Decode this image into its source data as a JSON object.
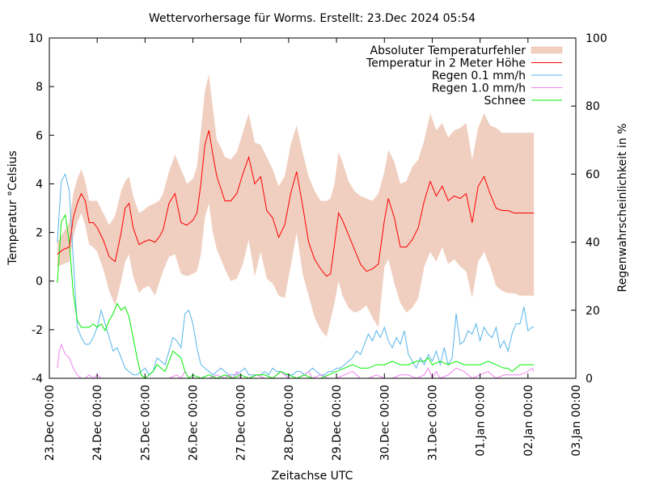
{
  "chart_data": {
    "type": "line",
    "title": "Wettervorhersage für Worms. Erstellt: 23.Dec 2024 05:54",
    "xlabel": "Zeitachse UTC",
    "ylabel": "Temperatur °Celsius",
    "y2label": "Regenwahrscheinlichkeit in %",
    "ylim": [
      -4,
      10
    ],
    "y2lim": [
      0,
      100
    ],
    "x_unit": "hours since 23.Dec 00:00 UTC",
    "xlim": [
      0,
      264
    ],
    "x_ticks": [
      {
        "hour": 0,
        "label": "23.Dec 00:00"
      },
      {
        "hour": 24,
        "label": "24.Dec 00:00"
      },
      {
        "hour": 48,
        "label": "25.Dec 00:00"
      },
      {
        "hour": 72,
        "label": "26.Dec 00:00"
      },
      {
        "hour": 96,
        "label": "27.Dec 00:00"
      },
      {
        "hour": 120,
        "label": "28.Dec 00:00"
      },
      {
        "hour": 144,
        "label": "29.Dec 00:00"
      },
      {
        "hour": 168,
        "label": "30.Dec 00:00"
      },
      {
        "hour": 192,
        "label": "31.Dec 00:00"
      },
      {
        "hour": 216,
        "label": "01.Jan 00:00"
      },
      {
        "hour": 240,
        "label": "02.Jan 00:00"
      },
      {
        "hour": 264,
        "label": "03.Jan 00:00"
      }
    ],
    "y_ticks": [
      {
        "value": 10,
        "label": "10"
      },
      {
        "value": 8,
        "label": "8"
      },
      {
        "value": 6,
        "label": "6"
      },
      {
        "value": 4,
        "label": "4"
      },
      {
        "value": 2,
        "label": "2"
      },
      {
        "value": 0,
        "label": "0"
      },
      {
        "value": -2,
        "label": "-2"
      },
      {
        "value": -4,
        "label": "-4"
      }
    ],
    "y2_ticks": [
      {
        "value": 100,
        "label": "100"
      },
      {
        "value": 80,
        "label": "80"
      },
      {
        "value": 60,
        "label": "60"
      },
      {
        "value": 40,
        "label": "40"
      },
      {
        "value": 20,
        "label": "20"
      },
      {
        "value": 0,
        "label": "0"
      }
    ],
    "grid": false,
    "legend_position": "top-right",
    "legend": [
      {
        "label": "Absoluter Temperaturfehler",
        "kind": "band",
        "color": "#f0cfc0"
      },
      {
        "label": "Temperatur in 2 Meter Höhe",
        "kind": "line",
        "color": "#ff0000"
      },
      {
        "label": "Regen 0.1 mm/h",
        "kind": "line",
        "color": "#56b4e9"
      },
      {
        "label": "Regen 1.0 mm/h",
        "kind": "line",
        "color": "#ee82ee"
      },
      {
        "label": "Schnee",
        "kind": "line",
        "color": "#00ee00"
      }
    ],
    "series": [
      {
        "name": "Temperatur in 2 Meter Höhe",
        "axis": "left",
        "color": "#ff0000",
        "x": [
          4,
          7,
          10,
          12,
          14,
          16,
          18,
          20,
          22,
          24,
          27,
          30,
          33,
          36,
          38,
          40,
          42,
          45,
          47,
          50,
          53,
          55,
          57,
          60,
          63,
          66,
          69,
          72,
          74,
          76,
          78,
          80,
          82,
          84,
          86,
          88,
          91,
          94,
          97,
          100,
          103,
          106,
          109,
          112,
          115,
          118,
          121,
          124,
          127,
          130,
          133,
          136,
          139,
          141,
          143,
          145,
          147,
          150,
          153,
          156,
          159,
          162,
          165,
          168,
          170,
          173,
          176,
          179,
          182,
          185,
          188,
          191,
          194,
          197,
          200,
          203,
          206,
          209,
          212,
          215,
          218,
          221,
          224,
          227,
          230,
          233,
          236,
          239,
          242,
          243
        ],
        "values": [
          1.1,
          1.3,
          1.4,
          2.6,
          3.2,
          3.6,
          3.3,
          2.4,
          2.4,
          2.2,
          1.7,
          1.0,
          0.8,
          2.0,
          3.0,
          3.2,
          2.2,
          1.5,
          1.6,
          1.7,
          1.6,
          1.8,
          2.1,
          3.2,
          3.6,
          2.4,
          2.3,
          2.5,
          2.8,
          4.0,
          5.6,
          6.2,
          5.2,
          4.3,
          3.8,
          3.3,
          3.3,
          3.6,
          4.4,
          5.1,
          4.0,
          4.3,
          2.9,
          2.6,
          1.8,
          2.3,
          3.6,
          4.5,
          3.1,
          1.6,
          0.9,
          0.5,
          0.2,
          0.3,
          1.5,
          2.8,
          2.5,
          1.9,
          1.3,
          0.7,
          0.4,
          0.5,
          0.7,
          2.5,
          3.4,
          2.6,
          1.4,
          1.4,
          1.7,
          2.2,
          3.3,
          4.1,
          3.5,
          3.9,
          3.3,
          3.5,
          3.4,
          3.6,
          2.4,
          3.9,
          4.3,
          3.6,
          3.0,
          2.9,
          2.9,
          2.8,
          2.8,
          2.8,
          2.8,
          2.8
        ]
      },
      {
        "name": "Absoluter Temperaturfehler (upper)",
        "axis": "left",
        "color": "#f0cfc0",
        "x": [
          4,
          7,
          10,
          12,
          14,
          16,
          18,
          20,
          22,
          24,
          27,
          30,
          33,
          36,
          38,
          40,
          42,
          45,
          47,
          50,
          53,
          55,
          57,
          60,
          63,
          66,
          69,
          72,
          74,
          76,
          78,
          80,
          82,
          84,
          86,
          88,
          91,
          94,
          97,
          100,
          103,
          106,
          109,
          112,
          115,
          118,
          121,
          124,
          127,
          130,
          133,
          136,
          139,
          141,
          143,
          145,
          147,
          150,
          153,
          156,
          159,
          162,
          165,
          168,
          170,
          173,
          176,
          179,
          182,
          185,
          188,
          191,
          194,
          197,
          200,
          203,
          206,
          209,
          212,
          215,
          218,
          221,
          224,
          227,
          230,
          233,
          236,
          239,
          242,
          243
        ],
        "values": [
          1.6,
          2.0,
          2.4,
          3.6,
          4.2,
          4.6,
          4.1,
          3.3,
          3.3,
          3.3,
          2.8,
          2.3,
          2.7,
          3.7,
          4.1,
          4.3,
          3.5,
          2.8,
          2.9,
          3.1,
          3.2,
          3.3,
          3.6,
          4.5,
          5.2,
          4.6,
          4.0,
          4.2,
          4.7,
          6.2,
          7.8,
          8.5,
          7.1,
          5.8,
          5.5,
          5.1,
          5.0,
          5.3,
          6.1,
          6.9,
          5.7,
          5.6,
          5.1,
          4.6,
          3.9,
          4.3,
          5.6,
          6.4,
          5.3,
          4.3,
          3.7,
          3.3,
          3.3,
          3.4,
          4.0,
          5.3,
          4.9,
          4.1,
          3.7,
          3.5,
          3.4,
          3.3,
          3.6,
          4.5,
          5.4,
          4.9,
          4.0,
          4.1,
          4.7,
          5.0,
          5.8,
          6.9,
          6.2,
          6.5,
          5.9,
          6.2,
          6.3,
          6.5,
          5.0,
          6.3,
          6.9,
          6.4,
          6.3,
          6.1,
          6.1,
          6.1,
          6.1,
          6.1,
          6.1,
          6.1
        ]
      },
      {
        "name": "Absoluter Temperaturfehler (lower)",
        "axis": "left",
        "color": "#f0cfc0",
        "x": [
          4,
          7,
          10,
          12,
          14,
          16,
          18,
          20,
          22,
          24,
          27,
          30,
          33,
          36,
          38,
          40,
          42,
          45,
          47,
          50,
          53,
          55,
          57,
          60,
          63,
          66,
          69,
          72,
          74,
          76,
          78,
          80,
          82,
          84,
          86,
          88,
          91,
          94,
          97,
          100,
          103,
          106,
          109,
          112,
          115,
          118,
          121,
          124,
          127,
          130,
          133,
          136,
          139,
          141,
          143,
          145,
          147,
          150,
          153,
          156,
          159,
          162,
          165,
          168,
          170,
          173,
          176,
          179,
          182,
          185,
          188,
          191,
          194,
          197,
          200,
          203,
          206,
          209,
          212,
          215,
          218,
          221,
          224,
          227,
          230,
          233,
          236,
          239,
          242,
          243
        ],
        "values": [
          0.6,
          0.7,
          0.8,
          1.8,
          2.4,
          2.8,
          2.3,
          1.5,
          1.4,
          1.2,
          0.5,
          -0.4,
          -1.0,
          0.0,
          0.8,
          1.1,
          0.2,
          -0.5,
          -0.3,
          -0.2,
          -0.6,
          -0.1,
          0.4,
          1.0,
          1.1,
          0.3,
          0.2,
          0.3,
          0.4,
          1.1,
          2.6,
          3.2,
          2.0,
          1.3,
          0.9,
          0.5,
          0.0,
          0.1,
          0.7,
          1.7,
          0.2,
          1.2,
          0.1,
          -0.1,
          -0.6,
          -0.7,
          0.6,
          2.0,
          0.3,
          -0.6,
          -1.5,
          -2.0,
          -2.3,
          -1.6,
          -0.9,
          0.0,
          -0.6,
          -1.1,
          -1.3,
          -1.2,
          -1.0,
          -1.5,
          -1.9,
          0.6,
          0.9,
          -0.1,
          -0.9,
          -1.3,
          -1.1,
          -0.7,
          0.6,
          1.2,
          0.8,
          1.4,
          0.7,
          0.9,
          0.6,
          0.4,
          -0.7,
          0.8,
          1.2,
          0.6,
          -0.2,
          -0.4,
          -0.5,
          -0.5,
          -0.6,
          -0.6,
          -0.6,
          -0.6
        ]
      },
      {
        "name": "Regen 0.1 mm/h",
        "axis": "right",
        "color": "#56b4e9",
        "x": [
          4,
          6,
          8,
          10,
          12,
          14,
          16,
          18,
          20,
          22,
          24,
          26,
          28,
          30,
          32,
          34,
          36,
          38,
          40,
          42,
          44,
          46,
          48,
          50,
          52,
          54,
          56,
          58,
          60,
          62,
          64,
          66,
          68,
          70,
          72,
          74,
          76,
          78,
          80,
          82,
          84,
          86,
          88,
          90,
          92,
          94,
          96,
          98,
          100,
          102,
          104,
          106,
          108,
          110,
          112,
          114,
          116,
          118,
          120,
          122,
          124,
          126,
          128,
          130,
          132,
          134,
          136,
          138,
          140,
          142,
          144,
          146,
          148,
          150,
          152,
          154,
          156,
          158,
          160,
          162,
          164,
          166,
          168,
          170,
          172,
          174,
          176,
          178,
          180,
          182,
          184,
          186,
          188,
          190,
          192,
          194,
          196,
          198,
          200,
          202,
          204,
          206,
          208,
          210,
          212,
          214,
          216,
          218,
          220,
          222,
          224,
          226,
          228,
          230,
          232,
          234,
          236,
          238,
          240,
          242,
          243
        ],
        "values": [
          40,
          58,
          60,
          55,
          35,
          15,
          12,
          10,
          10,
          12,
          15,
          20,
          16,
          12,
          8,
          9,
          6,
          3,
          2,
          1,
          1,
          2,
          3,
          1,
          2,
          6,
          5,
          4,
          8,
          12,
          11,
          9,
          19,
          20,
          16,
          9,
          4,
          3,
          2,
          1,
          2,
          3,
          2,
          1,
          1,
          1,
          2,
          3,
          1,
          1,
          1,
          1,
          2,
          1,
          3,
          2,
          2,
          1,
          1,
          1,
          2,
          2,
          1,
          2,
          3,
          2,
          1,
          1,
          2,
          2,
          3,
          3,
          4,
          5,
          6,
          8,
          7,
          10,
          13,
          11,
          14,
          12,
          15,
          11,
          9,
          12,
          10,
          14,
          7,
          5,
          3,
          6,
          4,
          7,
          5,
          8,
          4,
          9,
          4,
          6,
          19,
          10,
          11,
          14,
          13,
          16,
          11,
          15,
          13,
          12,
          15,
          9,
          11,
          8,
          13,
          16,
          16,
          21,
          14,
          15,
          15
        ]
      },
      {
        "name": "Regen 1.0 mm/h",
        "axis": "right",
        "color": "#ee82ee",
        "x": [
          4,
          5,
          6,
          8,
          10,
          12,
          14,
          16,
          18,
          20,
          22,
          24,
          26,
          28,
          30,
          32,
          34,
          36,
          38,
          40,
          42,
          44,
          48,
          52,
          56,
          60,
          64,
          66,
          68,
          70,
          72,
          76,
          80,
          84,
          88,
          90,
          92,
          94,
          96,
          100,
          104,
          108,
          112,
          116,
          120,
          124,
          128,
          130,
          132,
          136,
          140,
          144,
          148,
          152,
          156,
          160,
          164,
          168,
          172,
          176,
          180,
          184,
          188,
          190,
          192,
          194,
          196,
          200,
          204,
          208,
          212,
          216,
          220,
          224,
          228,
          232,
          236,
          240,
          242,
          243
        ],
        "values": [
          3,
          8,
          10,
          7,
          6,
          3,
          1,
          0,
          0,
          1,
          0,
          1,
          0,
          0,
          0,
          0,
          0,
          0,
          0,
          0,
          0,
          0,
          0,
          0,
          0,
          0,
          1,
          0,
          2,
          0,
          0,
          0,
          0,
          1,
          0,
          1,
          0,
          2,
          0,
          0,
          1,
          0,
          0,
          2,
          0,
          0,
          1,
          2,
          0,
          1,
          0,
          0,
          1,
          2,
          0,
          0,
          1,
          0,
          0,
          1,
          1,
          0,
          1,
          3,
          0,
          2,
          0,
          1,
          3,
          2,
          0,
          1,
          2,
          0,
          1,
          1,
          1,
          2,
          3,
          2
        ]
      },
      {
        "name": "Schnee",
        "axis": "right",
        "color": "#00ee00",
        "x": [
          4,
          6,
          8,
          10,
          12,
          14,
          16,
          18,
          20,
          22,
          24,
          26,
          28,
          30,
          32,
          34,
          36,
          38,
          40,
          42,
          44,
          46,
          48,
          50,
          52,
          54,
          56,
          58,
          60,
          62,
          64,
          66,
          68,
          70,
          72,
          76,
          80,
          84,
          88,
          92,
          96,
          100,
          104,
          108,
          112,
          116,
          120,
          124,
          128,
          132,
          136,
          140,
          144,
          148,
          152,
          156,
          160,
          164,
          168,
          172,
          176,
          180,
          184,
          188,
          190,
          192,
          196,
          200,
          204,
          208,
          212,
          216,
          220,
          224,
          228,
          230,
          232,
          236,
          240,
          242,
          243
        ],
        "values": [
          28,
          46,
          48,
          40,
          25,
          17,
          15,
          15,
          15,
          16,
          15,
          16,
          14,
          17,
          19,
          22,
          20,
          21,
          18,
          12,
          6,
          1,
          0,
          1,
          2,
          4,
          3,
          2,
          5,
          8,
          7,
          6,
          2,
          0,
          1,
          0,
          1,
          0,
          1,
          0,
          1,
          0,
          1,
          1,
          0,
          2,
          1,
          0,
          1,
          0,
          0,
          1,
          2,
          3,
          4,
          3,
          3,
          4,
          4,
          5,
          4,
          4,
          5,
          5,
          6,
          4,
          5,
          4,
          5,
          4,
          4,
          4,
          5,
          4,
          3,
          3,
          2,
          4,
          4,
          4,
          4
        ]
      }
    ]
  }
}
